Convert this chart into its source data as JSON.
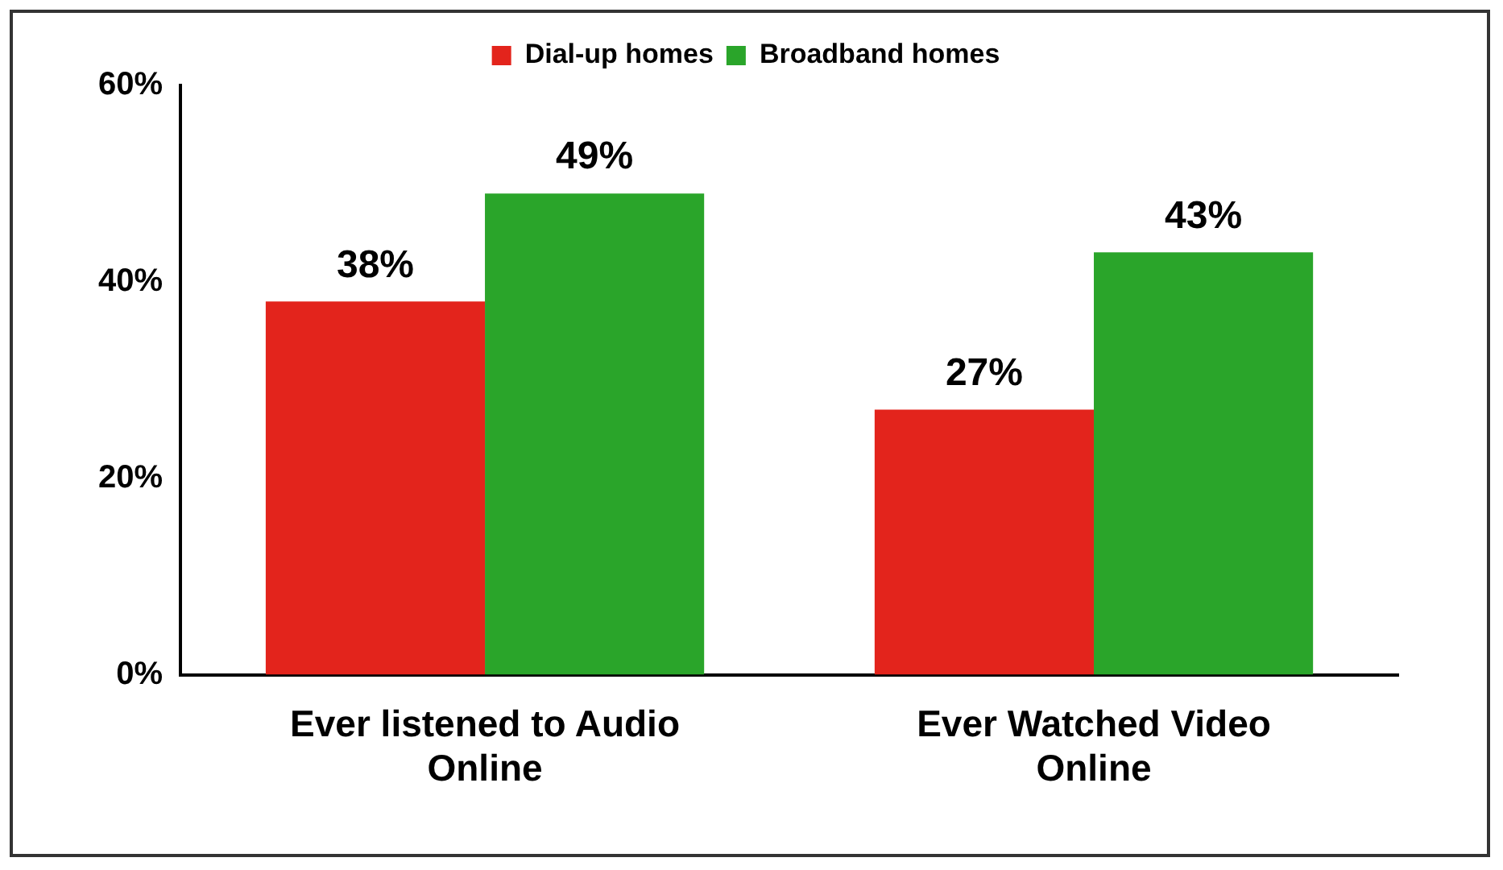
{
  "chart_data": {
    "type": "bar",
    "categories": [
      "Ever listened to Audio Online",
      "Ever Watched Video Online"
    ],
    "series": [
      {
        "name": "Dial-up homes",
        "color": "#e3241c",
        "values": [
          38,
          27
        ],
        "value_labels": [
          "38%",
          "27%"
        ]
      },
      {
        "name": "Broadband homes",
        "color": "#2aa52a",
        "values": [
          49,
          43
        ],
        "value_labels": [
          "49%",
          "43%"
        ]
      }
    ],
    "ylim": [
      0,
      60
    ],
    "yticks": [
      {
        "value": 0,
        "label": "0%"
      },
      {
        "value": 20,
        "label": "20%"
      },
      {
        "value": 40,
        "label": "40%"
      },
      {
        "value": 60,
        "label": "60%"
      }
    ],
    "grid": false,
    "legend": "top"
  }
}
